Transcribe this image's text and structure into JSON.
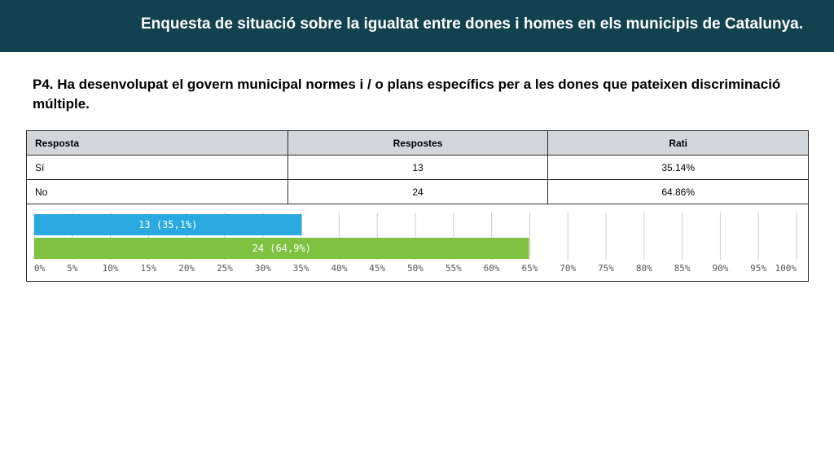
{
  "header": {
    "title": "Enquesta de situació sobre la  igualtat entre dones i homes en els municipis de Catalunya."
  },
  "question": "P4. Ha desenvolupat el govern municipal normes i / o plans específics per a les dones que pateixen discriminació múltiple.",
  "table": {
    "headers": [
      "Resposta",
      "Respostes",
      "Rati"
    ],
    "rows": [
      [
        "Sí",
        "13",
        "35.14%"
      ],
      [
        "No",
        "24",
        "64.86%"
      ]
    ]
  },
  "colors": {
    "header_bg": "#12414f",
    "bar_si": "#2aa9e0",
    "bar_no": "#7fc241",
    "grid": "#cccccc"
  },
  "chart_data": {
    "type": "bar",
    "orientation": "horizontal",
    "categories": [
      "Sí",
      "No"
    ],
    "values": [
      35.1,
      64.9
    ],
    "bar_labels": [
      "13 (35,1%)",
      "24 (64,9%)"
    ],
    "xlim": [
      0,
      100
    ],
    "x_ticks": [
      "0%",
      "5%",
      "10%",
      "15%",
      "20%",
      "25%",
      "30%",
      "35%",
      "40%",
      "45%",
      "50%",
      "55%",
      "60%",
      "65%",
      "70%",
      "75%",
      "80%",
      "85%",
      "90%",
      "95%",
      "100%"
    ],
    "grid": true
  }
}
